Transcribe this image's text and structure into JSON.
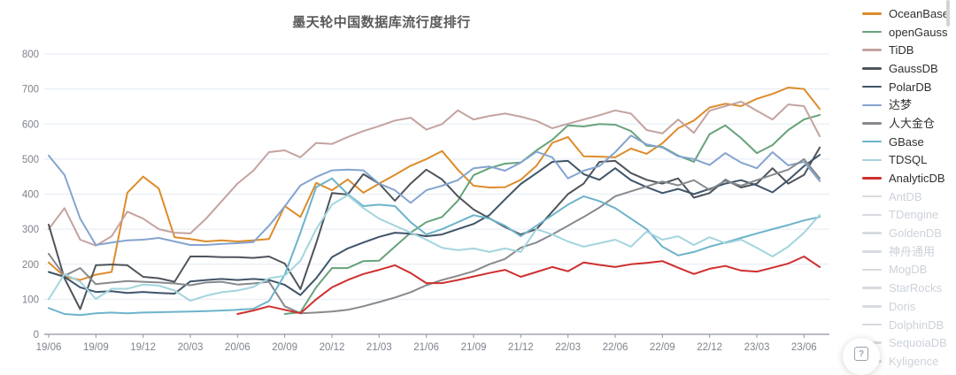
{
  "title": "墨天轮中国数据库流行度排行",
  "help_button": {
    "label": "?"
  },
  "axis": {
    "y_ticks": [
      0,
      100,
      200,
      300,
      400,
      500,
      600,
      700,
      800
    ],
    "x_tick_labels": [
      "19/06",
      "19/09",
      "19/12",
      "20/03",
      "20/06",
      "20/09",
      "20/12",
      "21/03",
      "21/06",
      "21/09",
      "21/12",
      "22/03",
      "22/06",
      "22/09",
      "22/12",
      "23/03",
      "23/06"
    ]
  },
  "colors": {
    "grid": "#e3ebf3",
    "axis_line": "#8f959e",
    "tick_text": "#7e838d",
    "inactive_swatch": "#d7dade",
    "inactive_text": "#ccd2d9"
  },
  "legend": {
    "items": [
      {
        "label": "OceanBase",
        "color": "#dd8c2b",
        "active": true
      },
      {
        "label": "openGauss",
        "color": "#67a27a",
        "active": true
      },
      {
        "label": "TiDB",
        "color": "#c4a3a0",
        "active": true
      },
      {
        "label": "GaussDB",
        "color": "#4f545b",
        "active": true
      },
      {
        "label": "PolarDB",
        "color": "#3f5569",
        "active": true
      },
      {
        "label": "达梦",
        "color": "#84a4cf",
        "active": true
      },
      {
        "label": "人大金仓",
        "color": "#87898d",
        "active": true
      },
      {
        "label": "GBase",
        "color": "#6db3ca",
        "active": true
      },
      {
        "label": "TDSQL",
        "color": "#a3d5de",
        "active": true
      },
      {
        "label": "AnalyticDB",
        "color": "#cf2f2f",
        "active": true
      },
      {
        "label": "AntDB",
        "color": "#d7dade",
        "active": false
      },
      {
        "label": "TDengine",
        "color": "#d7dade",
        "active": false
      },
      {
        "label": "GoldenDB",
        "color": "#d7dade",
        "active": false
      },
      {
        "label": "神舟通用",
        "color": "#d7dade",
        "active": false
      },
      {
        "label": "MogDB",
        "color": "#d7dade",
        "active": false
      },
      {
        "label": "StarRocks",
        "color": "#d7dade",
        "active": false
      },
      {
        "label": "Doris",
        "color": "#d7dade",
        "active": false
      },
      {
        "label": "DolphinDB",
        "color": "#d7dade",
        "active": false
      },
      {
        "label": "SequoiaDB",
        "color": "#d7dade",
        "active": false
      },
      {
        "label": "Kyligence",
        "color": "#d7dade",
        "active": false
      }
    ]
  },
  "chart_data": {
    "type": "line",
    "title": "墨天轮中国数据库流行度排行",
    "xlabel": "",
    "ylabel": "",
    "ylim": [
      0,
      800
    ],
    "grid": true,
    "legend_position": "right",
    "x": [
      "19/06",
      "19/07",
      "19/08",
      "19/09",
      "19/10",
      "19/11",
      "19/12",
      "20/01",
      "20/02",
      "20/03",
      "20/04",
      "20/05",
      "20/06",
      "20/07",
      "20/08",
      "20/09",
      "20/10",
      "20/11",
      "20/12",
      "21/01",
      "21/02",
      "21/03",
      "21/04",
      "21/05",
      "21/06",
      "21/07",
      "21/08",
      "21/09",
      "21/10",
      "21/11",
      "21/12",
      "22/01",
      "22/02",
      "22/03",
      "22/04",
      "22/05",
      "22/06",
      "22/07",
      "22/08",
      "22/09",
      "22/10",
      "22/11",
      "22/12",
      "23/01",
      "23/02",
      "23/03",
      "23/04",
      "23/05",
      "23/06",
      "23/07"
    ],
    "series": [
      {
        "name": "OceanBase",
        "color": "#dd8c2b",
        "values": [
          205,
          165,
          155,
          170,
          178,
          404,
          450,
          416,
          277,
          272,
          265,
          268,
          265,
          268,
          272,
          366,
          335,
          432,
          411,
          442,
          404,
          430,
          455,
          481,
          500,
          523,
          470,
          424,
          419,
          420,
          441,
          481,
          546,
          563,
          508,
          507,
          505,
          530,
          515,
          545,
          588,
          610,
          647,
          658,
          651,
          672,
          686,
          704,
          700,
          643
        ]
      },
      {
        "name": "openGauss",
        "color": "#67a27a",
        "values": [
          null,
          null,
          null,
          null,
          null,
          null,
          null,
          null,
          null,
          null,
          null,
          null,
          null,
          null,
          null,
          58,
          63,
          134,
          189,
          189,
          209,
          210,
          250,
          290,
          320,
          335,
          381,
          454,
          474,
          487,
          490,
          525,
          555,
          596,
          593,
          600,
          598,
          580,
          538,
          535,
          510,
          492,
          571,
          596,
          560,
          517,
          540,
          583,
          613,
          626
        ]
      },
      {
        "name": "TiDB",
        "color": "#c4a3a0",
        "values": [
          300,
          360,
          270,
          253,
          280,
          350,
          330,
          300,
          290,
          288,
          330,
          380,
          430,
          467,
          520,
          525,
          505,
          546,
          543,
          563,
          580,
          594,
          610,
          618,
          584,
          600,
          639,
          613,
          623,
          630,
          621,
          609,
          588,
          601,
          613,
          625,
          639,
          630,
          583,
          573,
          613,
          575,
          638,
          651,
          664,
          638,
          613,
          656,
          651,
          565
        ]
      },
      {
        "name": "GaussDB",
        "color": "#4f545b",
        "values": [
          313,
          160,
          72,
          197,
          199,
          197,
          164,
          160,
          150,
          222,
          222,
          220,
          220,
          218,
          222,
          202,
          129,
          260,
          403,
          399,
          457,
          430,
          381,
          430,
          470,
          442,
          394,
          356,
          331,
          306,
          285,
          300,
          350,
          400,
          430,
          492,
          495,
          460,
          441,
          430,
          445,
          390,
          403,
          441,
          419,
          430,
          474,
          430,
          455,
          533
        ]
      },
      {
        "name": "PolarDB",
        "color": "#3f5569",
        "values": [
          178,
          164,
          134,
          121,
          123,
          118,
          121,
          118,
          116,
          151,
          155,
          158,
          155,
          158,
          155,
          141,
          112,
          160,
          220,
          245,
          262,
          278,
          290,
          287,
          280,
          285,
          300,
          315,
          340,
          385,
          429,
          460,
          492,
          495,
          457,
          441,
          474,
          440,
          420,
          403,
          415,
          400,
          415,
          430,
          440,
          425,
          405,
          440,
          480,
          512
        ]
      },
      {
        "name": "达梦",
        "color": "#84a4cf",
        "values": [
          510,
          455,
          330,
          255,
          262,
          268,
          270,
          275,
          265,
          255,
          255,
          258,
          260,
          263,
          310,
          365,
          425,
          449,
          468,
          470,
          468,
          430,
          411,
          375,
          411,
          424,
          440,
          474,
          479,
          467,
          490,
          521,
          505,
          445,
          467,
          480,
          520,
          567,
          542,
          533,
          508,
          500,
          483,
          517,
          490,
          474,
          520,
          482,
          492,
          437
        ]
      },
      {
        "name": "人大金仓",
        "color": "#87898d",
        "values": [
          230,
          167,
          189,
          143,
          148,
          152,
          150,
          148,
          145,
          140,
          148,
          150,
          142,
          145,
          150,
          80,
          60,
          62,
          65,
          70,
          80,
          92,
          105,
          120,
          140,
          155,
          167,
          180,
          200,
          215,
          247,
          262,
          285,
          310,
          335,
          362,
          394,
          408,
          422,
          436,
          425,
          440,
          412,
          438,
          424,
          440,
          455,
          470,
          500,
          445
        ]
      },
      {
        "name": "GBase",
        "color": "#6db3ca",
        "values": [
          75,
          58,
          55,
          60,
          62,
          60,
          62,
          63,
          64,
          65,
          66,
          68,
          70,
          73,
          95,
          170,
          290,
          420,
          445,
          400,
          366,
          370,
          366,
          320,
          285,
          300,
          320,
          340,
          330,
          310,
          280,
          310,
          340,
          370,
          394,
          380,
          360,
          330,
          300,
          250,
          225,
          235,
          250,
          262,
          275,
          288,
          300,
          312,
          325,
          335
        ]
      },
      {
        "name": "TDSQL",
        "color": "#a3d5de",
        "values": [
          100,
          172,
          150,
          101,
          130,
          130,
          142,
          139,
          125,
          96,
          110,
          120,
          125,
          135,
          160,
          167,
          210,
          300,
          370,
          397,
          360,
          330,
          310,
          290,
          270,
          247,
          240,
          245,
          235,
          245,
          235,
          300,
          285,
          265,
          250,
          260,
          270,
          250,
          293,
          270,
          280,
          255,
          277,
          260,
          270,
          247,
          222,
          250,
          290,
          341
        ]
      },
      {
        "name": "AnalyticDB",
        "color": "#cf2f2f",
        "values": [
          null,
          null,
          null,
          null,
          null,
          null,
          null,
          null,
          null,
          null,
          null,
          null,
          58,
          68,
          80,
          70,
          60,
          100,
          134,
          155,
          172,
          184,
          197,
          175,
          146,
          146,
          155,
          165,
          175,
          184,
          164,
          178,
          192,
          180,
          205,
          198,
          192,
          200,
          204,
          209,
          190,
          172,
          187,
          195,
          182,
          179,
          190,
          202,
          222,
          192
        ]
      }
    ],
    "hidden_series": [
      "AntDB",
      "TDengine",
      "GoldenDB",
      "神舟通用",
      "MogDB",
      "StarRocks",
      "Doris",
      "DolphinDB",
      "SequoiaDB",
      "Kyligence"
    ]
  }
}
